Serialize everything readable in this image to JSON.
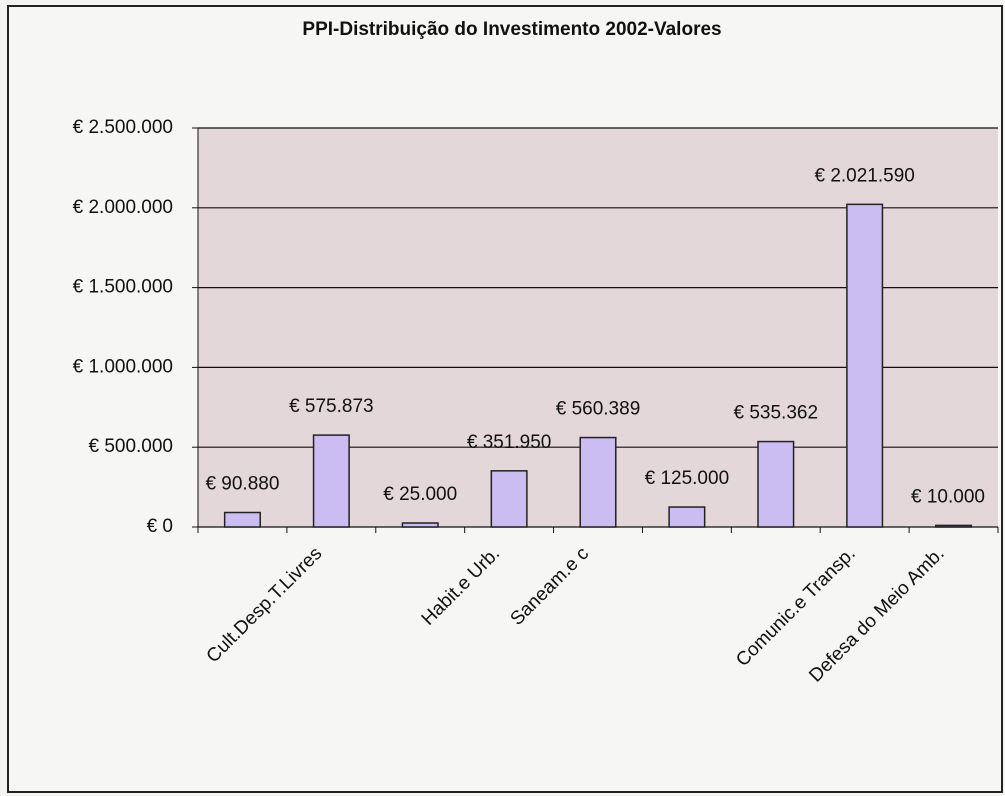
{
  "chart_data": {
    "type": "bar",
    "title": "PPI-Distribuição do Investimento 2002-Valores",
    "categories": [
      null,
      "Cult.Desp.T.Livres",
      null,
      "Habit.e Urb.",
      "Saneam.e c",
      null,
      null,
      "Comunic.e Transp.",
      "Defesa do Meio Amb."
    ],
    "values": [
      90880,
      575873,
      25000,
      351950,
      560389,
      125000,
      535362,
      2021590,
      10000
    ],
    "value_labels": [
      "€ 90.880",
      "€ 575.873",
      "€ 25.000",
      "€ 351.950",
      "€ 560.389",
      "€ 125.000",
      "€ 535.362",
      "€ 2.021.590",
      "€ 10.000"
    ],
    "color": "#cbbcf2",
    "ylim": [
      0,
      2500000
    ],
    "yticks": [
      {
        "value": 0,
        "label": "€ 0"
      },
      {
        "value": 500000,
        "label": "€ 500.000"
      },
      {
        "value": 1000000,
        "label": "€ 1.000.000"
      },
      {
        "value": 1500000,
        "label": "€ 1.500.000"
      },
      {
        "value": 2000000,
        "label": "€ 2.000.000"
      },
      {
        "value": 2500000,
        "label": "€ 2.500.000"
      }
    ],
    "grid": true
  }
}
